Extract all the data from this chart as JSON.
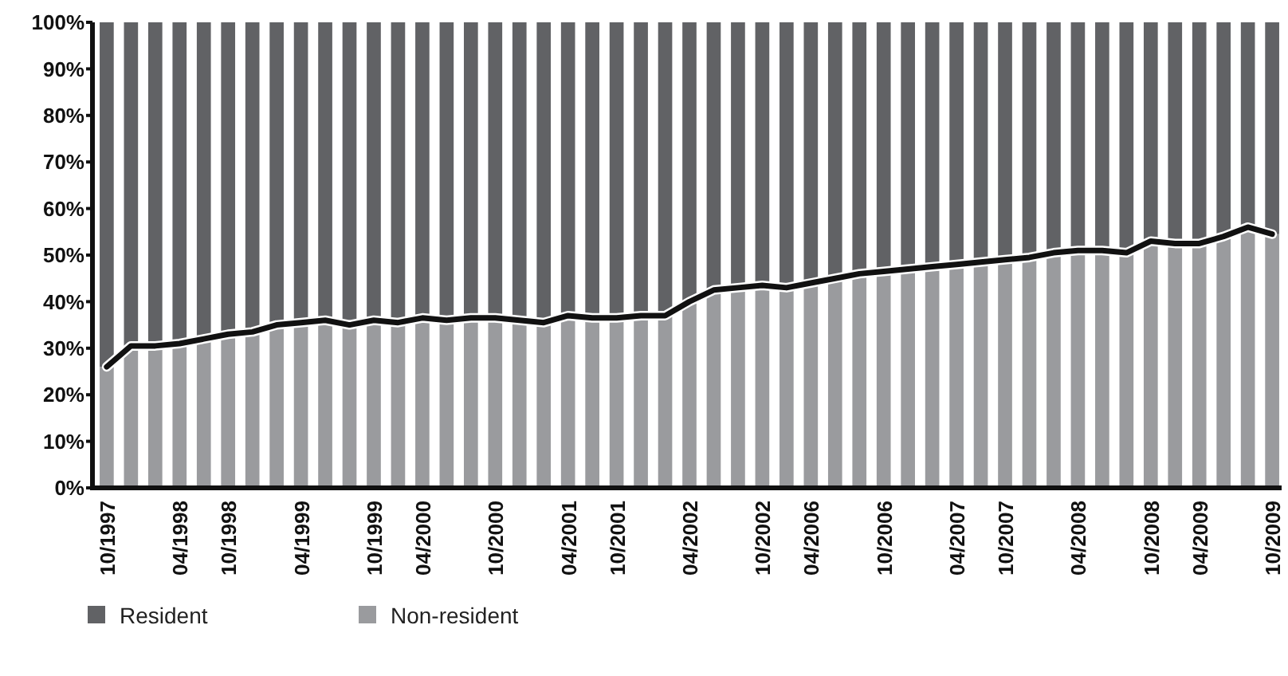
{
  "chart_data": {
    "type": "bar",
    "stacked": true,
    "categories": [
      "10/1997",
      null,
      null,
      "04/1998",
      null,
      "10/1998",
      null,
      null,
      "04/1999",
      null,
      null,
      "10/1999",
      null,
      "04/2000",
      null,
      null,
      "10/2000",
      null,
      null,
      "04/2001",
      null,
      "10/2001",
      null,
      null,
      "04/2002",
      null,
      null,
      "10/2002",
      null,
      "04/2006",
      null,
      null,
      "10/2006",
      null,
      null,
      "04/2007",
      null,
      "10/2007",
      null,
      null,
      "04/2008",
      null,
      null,
      "10/2008",
      null,
      "04/2009",
      null,
      null,
      "10/2009"
    ],
    "series": [
      {
        "name": "Non-resident",
        "color": "#9a9b9e",
        "values": [
          26,
          30.5,
          30.5,
          31,
          32,
          33,
          33.5,
          35,
          35.5,
          36,
          35,
          36,
          35.5,
          36.5,
          36,
          36.5,
          36.5,
          36,
          35.5,
          37,
          36.5,
          36.5,
          37,
          37,
          40,
          42.5,
          43,
          43.5,
          43,
          44,
          45,
          46,
          46.5,
          47,
          47.5,
          48,
          48.5,
          49,
          49.5,
          50.5,
          51,
          51,
          50.5,
          53,
          52.5,
          52.5,
          54,
          56,
          54.5
        ]
      },
      {
        "name": "Resident",
        "color": "#616265",
        "values": [
          74,
          69.5,
          69.5,
          69,
          68,
          67,
          66.5,
          65,
          64.5,
          64,
          65,
          64,
          64.5,
          63.5,
          64,
          63.5,
          63.5,
          64,
          64.5,
          63,
          63.5,
          63.5,
          63,
          63,
          60,
          57.5,
          57,
          56.5,
          57,
          56,
          55,
          54,
          53.5,
          53,
          52.5,
          52,
          51.5,
          51,
          50.5,
          49.5,
          49,
          49,
          49.5,
          47,
          47.5,
          47.5,
          46,
          44,
          45.5
        ]
      },
      {
        "type": "line",
        "color": "#111111",
        "values": [
          26,
          30.5,
          30.5,
          31,
          32,
          33,
          33.5,
          35,
          35.5,
          36,
          35,
          36,
          35.5,
          36.5,
          36,
          36.5,
          36.5,
          36,
          35.5,
          37,
          36.5,
          36.5,
          37,
          37,
          40,
          42.5,
          43,
          43.5,
          43,
          44,
          45,
          46,
          46.5,
          47,
          47.5,
          48,
          48.5,
          49,
          49.5,
          50.5,
          51,
          51,
          50.5,
          53,
          52.5,
          52.5,
          54,
          56,
          54.5
        ]
      }
    ],
    "ylim": [
      0,
      100
    ],
    "yticks": [
      {
        "value": 0,
        "label": "0%"
      },
      {
        "value": 10,
        "label": "10%"
      },
      {
        "value": 20,
        "label": "20%"
      },
      {
        "value": 30,
        "label": "30%"
      },
      {
        "value": 40,
        "label": "40%"
      },
      {
        "value": 50,
        "label": "50%"
      },
      {
        "value": 60,
        "label": "60%"
      },
      {
        "value": 70,
        "label": "70%"
      },
      {
        "value": 80,
        "label": "80%"
      },
      {
        "value": 90,
        "label": "90%"
      },
      {
        "value": 100,
        "label": "100%"
      }
    ],
    "grid": false,
    "legend": "bottom left",
    "marker": "none",
    "line_style": "solid"
  }
}
